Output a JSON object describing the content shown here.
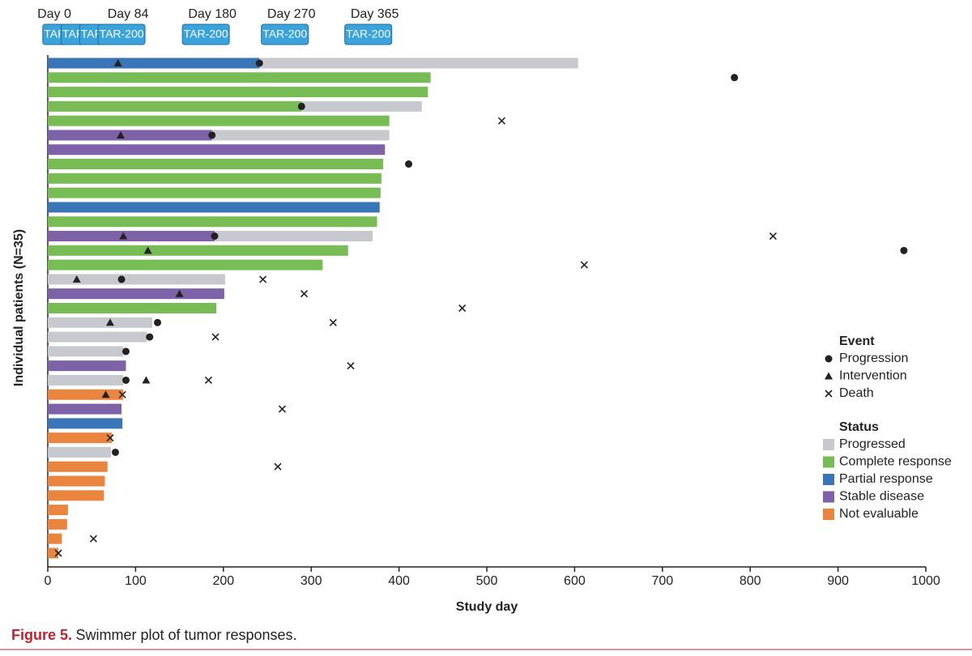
{
  "chart_data": {
    "type": "swimmer",
    "y_label": "Individual patients (N=35)",
    "x_label": "Study day",
    "xlim": [
      0,
      1000
    ],
    "xticks": [
      0,
      100,
      200,
      300,
      400,
      500,
      600,
      700,
      800,
      900,
      1000
    ],
    "milestones": [
      {
        "day": 0,
        "label": "Day 0"
      },
      {
        "day": 84,
        "label": "Day 84"
      },
      {
        "day": 180,
        "label": "Day 180"
      },
      {
        "day": 270,
        "label": "Day 270"
      },
      {
        "day": 365,
        "label": "Day 365"
      }
    ],
    "dose_label": "TAR-200",
    "dose_days": [
      21,
      42,
      63,
      84,
      180,
      270,
      365
    ],
    "event_title": "Event",
    "events": [
      {
        "key": "progression",
        "name": "Progression",
        "marker": "circle"
      },
      {
        "key": "intervention",
        "name": "Intervention",
        "marker": "triangle"
      },
      {
        "key": "death",
        "name": "Death",
        "marker": "cross"
      }
    ],
    "status_title": "Status",
    "statuses": [
      {
        "name": "Progressed",
        "color": "#c8c9ce"
      },
      {
        "name": "Complete response",
        "color": "#77bc55"
      },
      {
        "name": "Partial response",
        "color": "#3a75b8"
      },
      {
        "name": "Stable disease",
        "color": "#7e62a8"
      },
      {
        "name": "Not evaluable",
        "color": "#ea8540"
      }
    ],
    "progressed_status": "Progressed",
    "patients": [
      {
        "status": "Partial response",
        "response_end": 241,
        "progressed_end": 604,
        "progression": 241,
        "intervention": 80
      },
      {
        "status": "Complete response",
        "response_end": 436,
        "progression": 782
      },
      {
        "status": "Complete response",
        "response_end": 433
      },
      {
        "status": "Complete response",
        "response_end": 289,
        "progressed_end": 426,
        "progression": 289
      },
      {
        "status": "Complete response",
        "response_end": 389,
        "death": 517
      },
      {
        "status": "Stable disease",
        "response_end": 187,
        "progressed_end": 389,
        "progression": 187,
        "intervention": 83
      },
      {
        "status": "Stable disease",
        "response_end": 384
      },
      {
        "status": "Complete response",
        "response_end": 382,
        "progression": 411
      },
      {
        "status": "Complete response",
        "response_end": 380
      },
      {
        "status": "Complete response",
        "response_end": 379
      },
      {
        "status": "Partial response",
        "response_end": 378
      },
      {
        "status": "Complete response",
        "response_end": 375
      },
      {
        "status": "Stable disease",
        "response_end": 190,
        "progressed_end": 370,
        "progression": 190,
        "intervention": 86,
        "death": 826
      },
      {
        "status": "Complete response",
        "response_end": 342,
        "intervention": 114,
        "progression": 975
      },
      {
        "status": "Complete response",
        "response_end": 313,
        "death": 611
      },
      {
        "status": "Progressed",
        "response_end": 202,
        "intervention": 33,
        "progression": 84,
        "death": 245
      },
      {
        "status": "Stable disease",
        "response_end": 201,
        "intervention": 150,
        "death": 292
      },
      {
        "status": "Complete response",
        "response_end": 192,
        "death": 472
      },
      {
        "status": "Progressed",
        "response_end": 119,
        "intervention": 71,
        "progression": 125,
        "death": 325
      },
      {
        "status": "Progressed",
        "response_end": 113,
        "progression": 116,
        "death": 191
      },
      {
        "status": "Progressed",
        "response_end": 86,
        "progression": 89
      },
      {
        "status": "Stable disease",
        "response_end": 89,
        "death": 345
      },
      {
        "status": "Progressed",
        "response_end": 86,
        "progression": 89,
        "intervention": 112,
        "death": 183
      },
      {
        "status": "Not evaluable",
        "response_end": 86,
        "intervention": 66,
        "death": 85
      },
      {
        "status": "Stable disease",
        "response_end": 84,
        "death": 267
      },
      {
        "status": "Partial response",
        "response_end": 85
      },
      {
        "status": "Not evaluable",
        "response_end": 73,
        "death": 71
      },
      {
        "status": "Progressed",
        "response_end": 72,
        "progression": 77
      },
      {
        "status": "Not evaluable",
        "response_end": 68,
        "death": 262
      },
      {
        "status": "Not evaluable",
        "response_end": 65
      },
      {
        "status": "Not evaluable",
        "response_end": 64
      },
      {
        "status": "Not evaluable",
        "response_end": 23
      },
      {
        "status": "Not evaluable",
        "response_end": 22
      },
      {
        "status": "Not evaluable",
        "response_end": 16,
        "death": 52
      },
      {
        "status": "Not evaluable",
        "response_end": 12,
        "death": 12
      }
    ]
  },
  "caption": {
    "label": "Figure 5.",
    "text": "Swimmer plot of tumor responses."
  }
}
